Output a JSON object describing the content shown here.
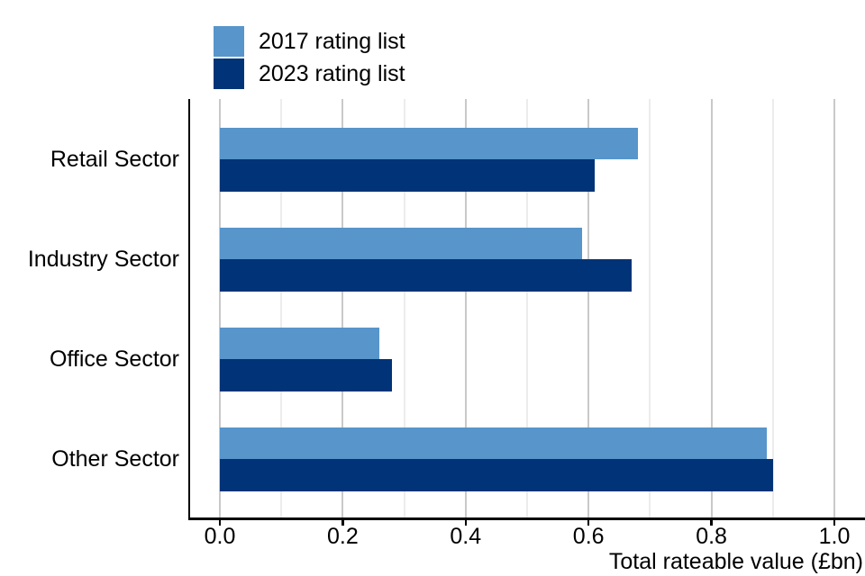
{
  "chart_data": {
    "type": "bar",
    "orientation": "horizontal",
    "title": "",
    "xlabel": "Total rateable value (£bn)",
    "ylabel": "",
    "categories": [
      "Retail Sector",
      "Industry Sector",
      "Office Sector",
      "Other Sector"
    ],
    "series": [
      {
        "name": "2017 rating list",
        "color": "#5795CB",
        "values": [
          0.68,
          0.59,
          0.26,
          0.89
        ]
      },
      {
        "name": "2023 rating list",
        "color": "#003377",
        "values": [
          0.61,
          0.67,
          0.28,
          0.9
        ]
      }
    ],
    "xlim": [
      0.0,
      1.05
    ],
    "xtick_labels": [
      "0.0",
      "0.2",
      "0.4",
      "0.6",
      "0.8",
      "1.0"
    ],
    "grid": {
      "on": true,
      "major_every": 0.2,
      "minor_every": 0.1
    },
    "legend_position": "top-left",
    "colors": {
      "grid_major": "#C9C9C9",
      "grid_minor": "#ECECEC",
      "axis_line": "#000000",
      "text": "#000000",
      "background": "#FFFFFF"
    }
  }
}
